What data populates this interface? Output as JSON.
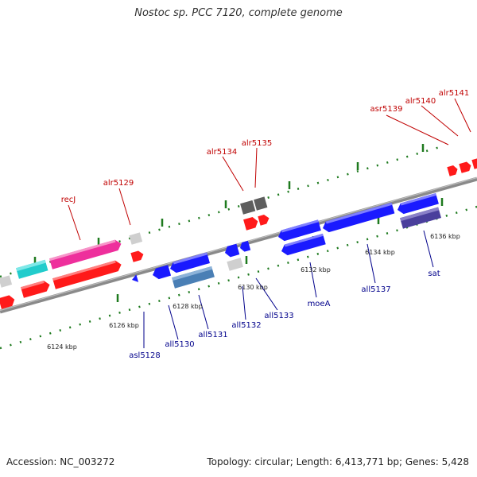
{
  "title": "Nostoc sp. PCC 7120, complete genome",
  "footer": {
    "accession": "Accession: NC_003272",
    "summary": "Topology: circular; Length: 6,413,771 bp; Genes: 5,428"
  },
  "colors": {
    "forward_label": "#c00000",
    "reverse_label": "#00008b",
    "backbone": "#8a8a8a",
    "tick": "#1e7a1e",
    "red": "#ff1a1a",
    "blue": "#1a1aff",
    "magenta": "#ee2f9c",
    "cyan": "#22cccc",
    "grey": "#cfcfcf",
    "darkgrey": "#5e5e5e",
    "steelblue": "#4a7fb5",
    "slateblue": "#4a3f9c"
  },
  "genes": {
    "forward": [
      "recJ",
      "alr5129",
      "alr5134",
      "alr5135",
      "asr5139",
      "alr5140",
      "alr5141"
    ],
    "reverse": [
      "asl5128",
      "all5130",
      "all5131",
      "all5132",
      "all5133",
      "moeA",
      "all5137",
      "sat"
    ]
  },
  "ticks": [
    "6124 kbp",
    "6126 kbp",
    "6128 kbp",
    "6130 kbp",
    "6132 kbp",
    "6134 kbp",
    "6136 kbp"
  ]
}
